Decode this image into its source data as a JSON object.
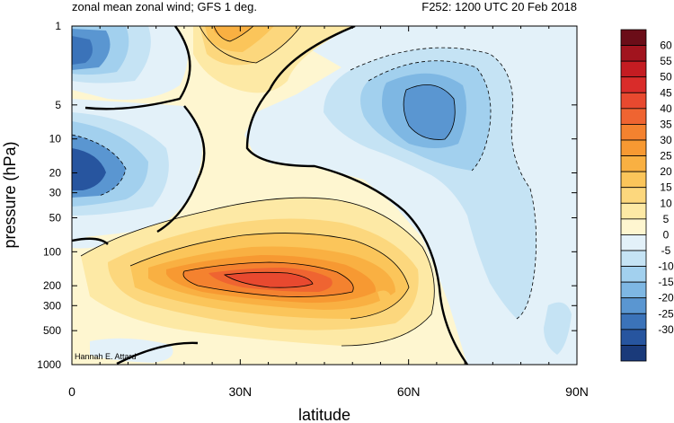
{
  "chart_data": {
    "type": "heatmap",
    "title_left": "zonal mean zonal wind; GFS 1 deg.",
    "title_right": "F252: 1200 UTC 20 Feb 2018",
    "xlabel": "latitude",
    "ylabel": "pressure (hPa)",
    "credit": "Hannah E. Attard",
    "x_range": [
      0,
      90
    ],
    "x_ticks": [
      {
        "value": 0,
        "label": "0"
      },
      {
        "value": 30,
        "label": "30N"
      },
      {
        "value": 60,
        "label": "60N"
      },
      {
        "value": 90,
        "label": "90N"
      }
    ],
    "y_range": [
      1,
      1000
    ],
    "y_scale": "log",
    "y_ticks": [
      {
        "value": 1,
        "label": "1"
      },
      {
        "value": 5,
        "label": "5"
      },
      {
        "value": 10,
        "label": "10"
      },
      {
        "value": 20,
        "label": "20"
      },
      {
        "value": 30,
        "label": "30"
      },
      {
        "value": 50,
        "label": "50"
      },
      {
        "value": 100,
        "label": "100"
      },
      {
        "value": 200,
        "label": "200"
      },
      {
        "value": 300,
        "label": "300"
      },
      {
        "value": 500,
        "label": "500"
      },
      {
        "value": 1000,
        "label": "1000"
      }
    ],
    "colorbar": {
      "labels": [
        "60",
        "55",
        "50",
        "45",
        "40",
        "35",
        "30",
        "25",
        "20",
        "15",
        "10",
        "5",
        "0",
        "-5",
        "-10",
        "-15",
        "-20",
        "-25",
        "-30"
      ],
      "colors": [
        "#6b0d18",
        "#a1141e",
        "#c41c22",
        "#d92c2a",
        "#e8492f",
        "#ef6431",
        "#f4822f",
        "#f79932",
        "#f9b042",
        "#fbc55a",
        "#fcd77d",
        "#fde9a5",
        "#fef6d0",
        "#e3f1f9",
        "#c5e3f4",
        "#a2d0ee",
        "#7eb7e3",
        "#5a96d1",
        "#3b73b9",
        "#27559f",
        "#1a3a7a"
      ]
    },
    "features": [
      {
        "name": "polar night jet core",
        "lat": 64,
        "pressure": 5,
        "value": -25
      },
      {
        "name": "tropical easterlies upper",
        "lat": 0,
        "pressure": 2,
        "value": -30
      },
      {
        "name": "tropical easterlies mid",
        "lat": 0,
        "pressure": 20,
        "value": -30
      },
      {
        "name": "upper westerly maximum",
        "lat": 32,
        "pressure": 1,
        "value": 25
      },
      {
        "name": "subtropical jet core",
        "lat": 31,
        "pressure": 200,
        "value": 40
      }
    ]
  }
}
